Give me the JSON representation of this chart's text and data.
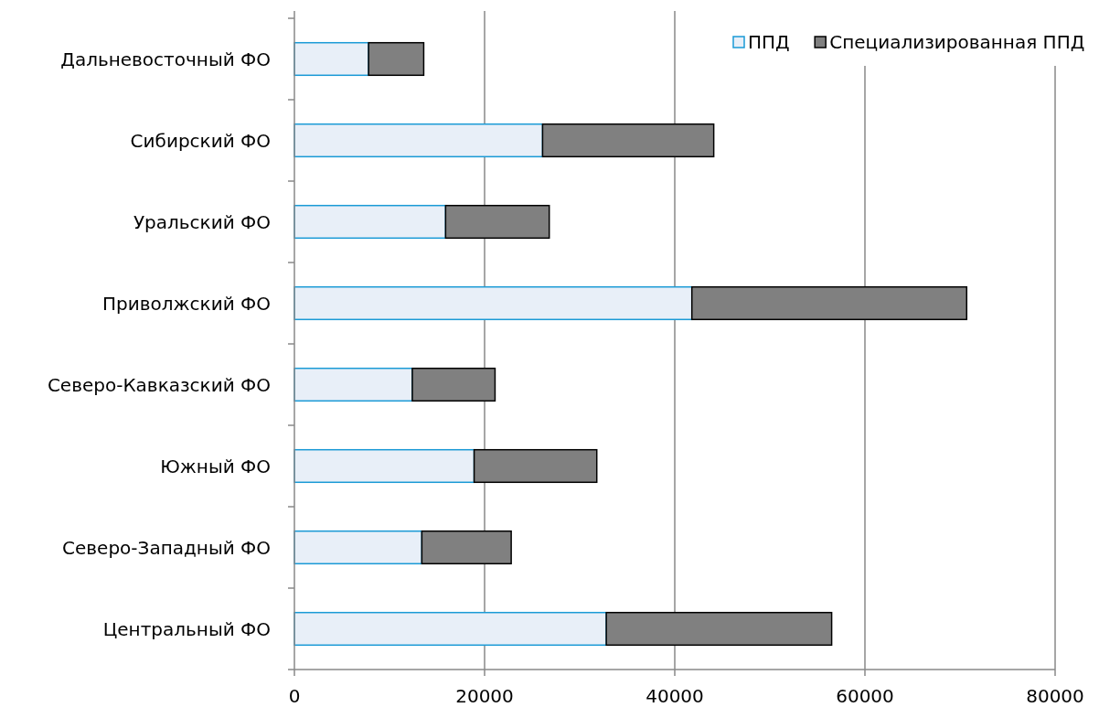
{
  "chart_data": {
    "type": "bar",
    "orientation": "horizontal",
    "stacked": true,
    "categories": [
      "Дальневосточный ФО",
      "Сибирский ФО",
      "Уральский ФО",
      "Приволжский ФО",
      "Северо-Кавказский ФО",
      "Южный ФО",
      "Северо-Западный ФО",
      "Центральный ФО"
    ],
    "series": [
      {
        "name": "ППД",
        "color": "#e8eff8",
        "values": [
          7800,
          26100,
          15900,
          41800,
          12400,
          18900,
          13400,
          32800
        ]
      },
      {
        "name": "Специализированная ППД",
        "color": "#808080",
        "values": [
          5800,
          18000,
          10900,
          28900,
          8700,
          12900,
          9400,
          23700
        ]
      }
    ],
    "xlim": [
      0,
      80000
    ],
    "xticks": [
      0,
      20000,
      40000,
      60000,
      80000
    ],
    "grid": "x",
    "legend": "top right"
  }
}
